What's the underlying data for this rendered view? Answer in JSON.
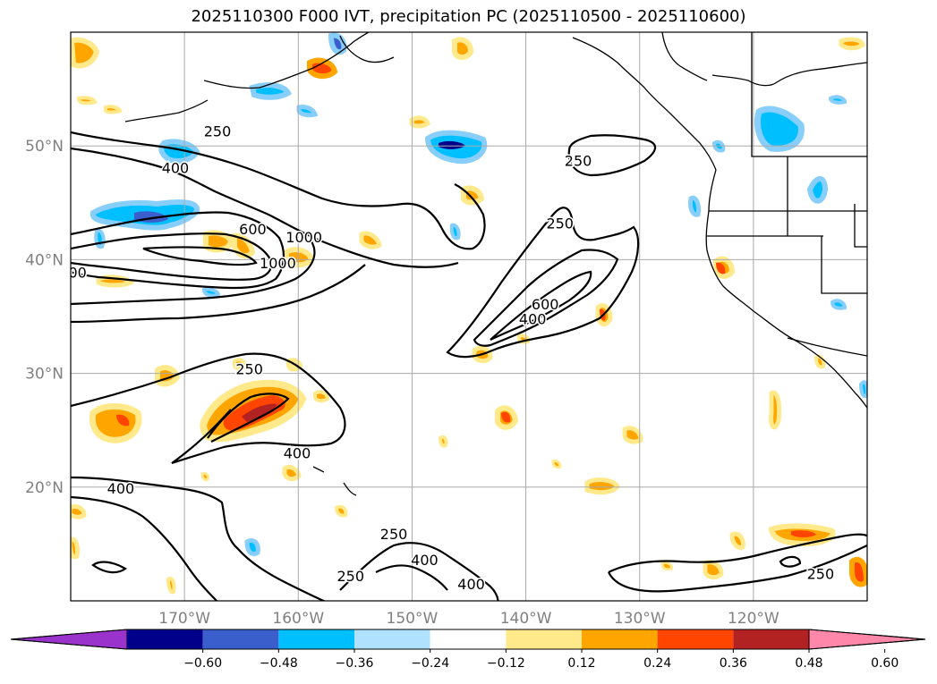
{
  "title": "2025110300 F000 IVT, precipitation PC (2025110500 - 2025110600)",
  "map": {
    "lon_range": [
      -180,
      -110
    ],
    "lat_range": [
      10,
      60
    ],
    "gridlines": true,
    "lat_labels": [
      {
        "lat": 50,
        "text": "50°N"
      },
      {
        "lat": 40,
        "text": "40°N"
      },
      {
        "lat": 30,
        "text": "30°N"
      },
      {
        "lat": 20,
        "text": "20°N"
      }
    ],
    "lon_labels": [
      {
        "lon": -170,
        "text": "170°W"
      },
      {
        "lon": -160,
        "text": "160°W"
      },
      {
        "lon": -150,
        "text": "150°W"
      },
      {
        "lon": -140,
        "text": "140°W"
      },
      {
        "lon": -130,
        "text": "130°W"
      },
      {
        "lon": -120,
        "text": "120°W"
      }
    ],
    "contour_labels": [
      {
        "text": "250",
        "lon": -167.1,
        "lat": 51.3
      },
      {
        "text": "400",
        "lon": -170.8,
        "lat": 48.1
      },
      {
        "text": "600",
        "lon": -164.0,
        "lat": 42.7
      },
      {
        "text": "1000",
        "lon": -159.5,
        "lat": 42.0
      },
      {
        "text": "1000",
        "lon": -161.8,
        "lat": 39.7
      },
      {
        "text": "00",
        "lon": -179.4,
        "lat": 38.9
      },
      {
        "text": "250",
        "lon": -135.4,
        "lat": 48.7
      },
      {
        "text": "250",
        "lon": -137.0,
        "lat": 43.2
      },
      {
        "text": "600",
        "lon": -138.3,
        "lat": 36.1
      },
      {
        "text": "400",
        "lon": -139.4,
        "lat": 34.8
      },
      {
        "text": "250",
        "lon": -164.3,
        "lat": 30.4
      },
      {
        "text": "400",
        "lon": -160.1,
        "lat": 23.0
      },
      {
        "text": "400",
        "lon": -175.6,
        "lat": 19.9
      },
      {
        "text": "250",
        "lon": -151.6,
        "lat": 15.9
      },
      {
        "text": "400",
        "lon": -148.9,
        "lat": 13.6
      },
      {
        "text": "250",
        "lon": -155.4,
        "lat": 12.2
      },
      {
        "text": "400",
        "lon": -144.8,
        "lat": 11.5
      },
      {
        "text": "250",
        "lon": -114.1,
        "lat": 12.4
      }
    ]
  },
  "colorbar": {
    "colors": [
      "#9933cc",
      "#00008b",
      "#3a5fcd",
      "#00bfff",
      "#b0e2ff",
      "#ffffff",
      "#ffe98a",
      "#ffa500",
      "#ff4500",
      "#b22222",
      "#ff88aa"
    ],
    "tick_labels": [
      "−0.60",
      "−0.48",
      "−0.36",
      "−0.24",
      "−0.12",
      "0.12",
      "0.24",
      "0.36",
      "0.48",
      "0.60"
    ]
  },
  "palette": {
    "land_line": "#000000",
    "grid": "#aaaaaa",
    "contour": "#000000"
  }
}
